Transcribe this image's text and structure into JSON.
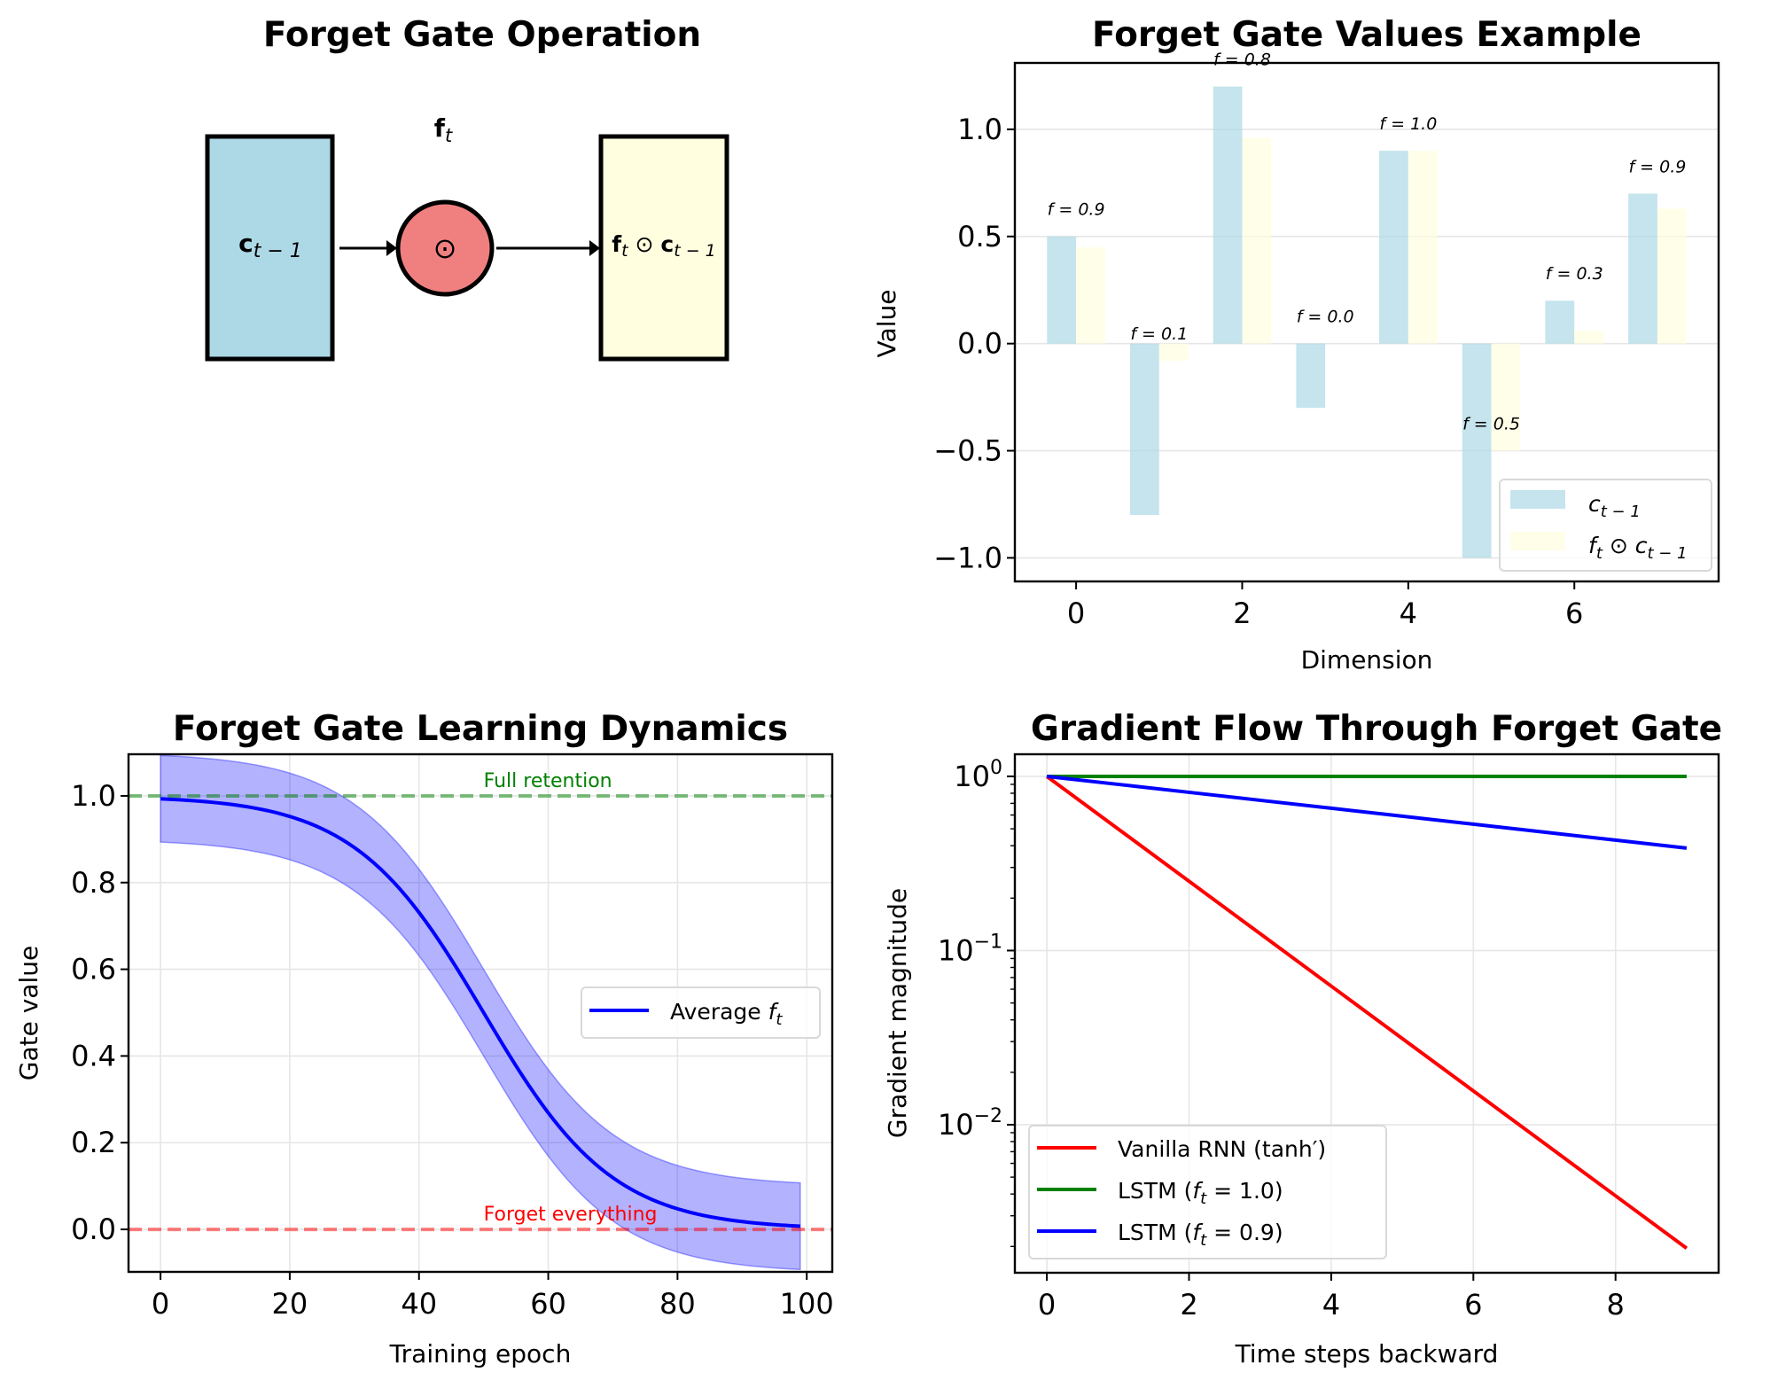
{
  "figure": {
    "panels": [
      {
        "id": "diagram",
        "title": "Forget Gate Operation",
        "boxes": [
          {
            "label_main": "c",
            "label_sub": "t − 1",
            "fill": "#add8e6"
          },
          {
            "label_main": "f",
            "label_sub": "t",
            "label_rest": " ⊙ ",
            "label_main2": "c",
            "label_sub2": "t − 1",
            "fill": "#ffffe0"
          }
        ],
        "gate": {
          "symbol": "⊙",
          "fill": "#f08080"
        },
        "gate_label_main": "f",
        "gate_label_sub": "t"
      }
    ]
  },
  "chart_data": [
    {
      "type": "bar",
      "title": "Forget Gate Values Example",
      "xlabel": "Dimension",
      "ylabel": "Value",
      "categories": [
        0,
        1,
        2,
        3,
        4,
        5,
        6,
        7
      ],
      "series": [
        {
          "name": "c_{t-1}",
          "legend_main": "c",
          "legend_sub": "t − 1",
          "color": "#add8e6",
          "opacity": 0.7,
          "values": [
            0.5,
            -0.8,
            1.2,
            -0.3,
            0.9,
            -1.0,
            0.2,
            0.7
          ]
        },
        {
          "name": "f_t ⊙ c_{t-1}",
          "legend_main": "f",
          "legend_sub": "t",
          "legend_mid": " ⊙ c",
          "legend_sub2": "t − 1",
          "color": "#ffffe0",
          "opacity": 0.7,
          "values": [
            0.45,
            -0.08,
            0.96,
            0.0,
            0.9,
            -0.5,
            0.06,
            0.63
          ]
        }
      ],
      "annotations": [
        "f = 0.9",
        "f = 0.1",
        "f = 0.8",
        "f = 0.0",
        "f = 1.0",
        "f = 0.5",
        "f = 0.3",
        "f = 0.9"
      ],
      "forget_values": [
        0.9,
        0.1,
        0.8,
        0.0,
        1.0,
        0.5,
        0.3,
        0.9
      ],
      "xticks": [
        0,
        2,
        4,
        6
      ],
      "yticks": [
        -1.0,
        -0.5,
        0.0,
        0.5,
        1.0
      ],
      "ytick_labels": [
        "−1.0",
        "−0.5",
        "0.0",
        "0.5",
        "1.0"
      ],
      "xlim": [
        -0.7375,
        7.7375
      ],
      "ylim": [
        -1.11,
        1.31
      ],
      "grid": "y",
      "legend_position": "lower-right"
    },
    {
      "type": "line",
      "title": "Forget Gate Learning Dynamics",
      "xlabel": "Training epoch",
      "ylabel": "Gate value",
      "x_range": [
        0,
        99
      ],
      "series": [
        {
          "name": "Average f_t",
          "legend_main": "Average ",
          "legend_italic": "f",
          "legend_sub": "t",
          "color": "#0000ff",
          "formula": "1/(1+exp((x-50)/10))",
          "band": 0.1,
          "band_color": "#0000ff",
          "band_opacity": 0.3
        }
      ],
      "sample_points": {
        "x": [
          0,
          10,
          20,
          30,
          40,
          50,
          60,
          70,
          80,
          90,
          99
        ],
        "y": [
          0.993,
          0.982,
          0.953,
          0.881,
          0.731,
          0.5,
          0.269,
          0.119,
          0.047,
          0.018,
          0.007
        ]
      },
      "hlines": [
        {
          "y": 1.0,
          "color": "#008000",
          "label": "Full retention",
          "label_color": "#008000"
        },
        {
          "y": 0.0,
          "color": "#ff0000",
          "label": "Forget everything",
          "label_color": "#ff0000"
        }
      ],
      "xticks": [
        0,
        20,
        40,
        60,
        80,
        100
      ],
      "yticks": [
        0.0,
        0.2,
        0.4,
        0.6,
        0.8,
        1.0
      ],
      "ytick_labels": [
        "0.0",
        "0.2",
        "0.4",
        "0.6",
        "0.8",
        "1.0"
      ],
      "xlim": [
        -4.95,
        103.95
      ],
      "ylim": [
        -0.098,
        1.096
      ],
      "grid": "both",
      "legend_position": "center-right"
    },
    {
      "type": "line",
      "title": "Gradient Flow Through Forget Gate",
      "xlabel": "Time steps backward",
      "ylabel": "Gradient magnitude",
      "yscale": "log",
      "x": [
        0,
        1,
        2,
        3,
        4,
        5,
        6,
        7,
        8,
        9
      ],
      "series": [
        {
          "name": "Vanilla RNN (tanh′)",
          "legend_text": "Vanilla RNN (tanh′)",
          "color": "#ff0000",
          "values": [
            1,
            0.5,
            0.25,
            0.125,
            0.0625,
            0.03125,
            0.015625,
            0.0078125,
            0.00390625,
            0.001953125
          ]
        },
        {
          "name": "LSTM (f_t = 1.0)",
          "legend_pre": "LSTM (",
          "legend_italic": "f",
          "legend_sub": "t",
          "legend_post": " = 1.0)",
          "color": "#008000",
          "values": [
            1,
            1,
            1,
            1,
            1,
            1,
            1,
            1,
            1,
            1
          ]
        },
        {
          "name": "LSTM (f_t = 0.9)",
          "legend_pre": "LSTM (",
          "legend_italic": "f",
          "legend_sub": "t",
          "legend_post": " = 0.9)",
          "color": "#0000ff",
          "values": [
            1,
            0.9,
            0.81,
            0.729,
            0.6561,
            0.59049,
            0.531441,
            0.4782969,
            0.43046721,
            0.387420489
          ]
        }
      ],
      "xticks": [
        0,
        2,
        4,
        6,
        8
      ],
      "yticks_major": [
        1,
        0.1,
        0.01
      ],
      "ytick_labels": [
        {
          "base": "10",
          "exp": "0"
        },
        {
          "base": "10",
          "exp": "−1"
        },
        {
          "base": "10",
          "exp": "−2"
        }
      ],
      "xlim": [
        -0.45,
        9.45
      ],
      "ylim_log10": [
        -2.85,
        0.127
      ],
      "grid": "both",
      "legend_position": "lower-left"
    }
  ]
}
